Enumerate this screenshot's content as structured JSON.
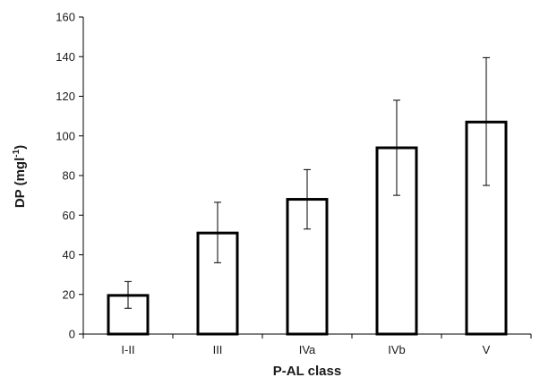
{
  "chart_data": {
    "type": "bar",
    "categories": [
      "I-II",
      "III",
      "IVa",
      "IVb",
      "V"
    ],
    "values": [
      19.5,
      51,
      68,
      94,
      107
    ],
    "error_low": [
      13,
      36,
      53,
      70,
      75
    ],
    "error_high": [
      26.5,
      66.5,
      83,
      118,
      139.5
    ],
    "xlabel": "P-AL class",
    "ylabel_main": "DP (mgl",
    "ylabel_sup": "-1",
    "ylabel_close": ")",
    "ylim": [
      0,
      160
    ],
    "yticks": [
      "0",
      "20",
      "40",
      "60",
      "80",
      "100",
      "120",
      "140",
      "160"
    ],
    "grid": false,
    "colors": {
      "bar_fill": "#ffffff",
      "bar_stroke": "#000000",
      "axis": "#000000"
    }
  }
}
